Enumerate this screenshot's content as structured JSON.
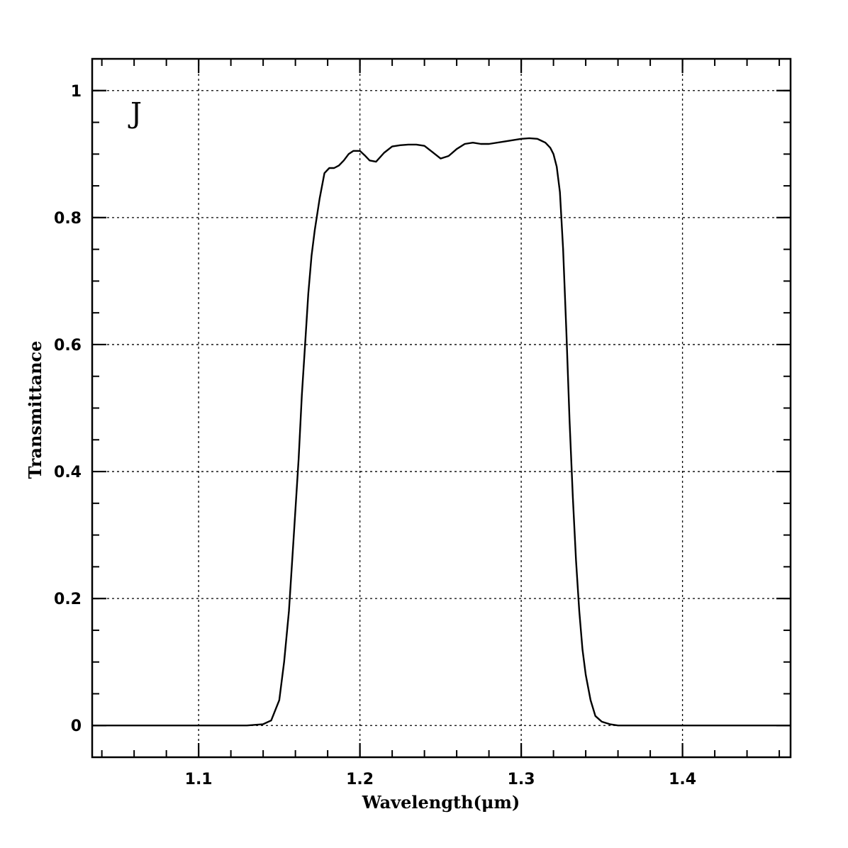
{
  "chart_data": {
    "type": "line",
    "xlabel": "Wavelength(μm)",
    "ylabel": "Transmittance",
    "annotation": "J",
    "xlim": [
      1.034,
      1.467
    ],
    "ylim": [
      -0.05,
      1.05
    ],
    "xticks": [
      1.1,
      1.2,
      1.3,
      1.4
    ],
    "xtick_labels": [
      "1.1",
      "1.2",
      "1.3",
      "1.4"
    ],
    "yticks": [
      0,
      0.2,
      0.4,
      0.6,
      0.8,
      1.0
    ],
    "ytick_labels": [
      "0",
      "0.2",
      "0.4",
      "0.6",
      "0.8",
      "1"
    ],
    "x_minor_step": 0.02,
    "y_minor_step": 0.05,
    "grid": true,
    "series": [
      {
        "x": [
          1.034,
          1.1,
          1.13,
          1.14,
          1.145,
          1.15,
          1.153,
          1.156,
          1.159,
          1.162,
          1.164,
          1.166,
          1.168,
          1.17,
          1.172,
          1.175,
          1.178,
          1.181,
          1.184,
          1.187,
          1.19,
          1.193,
          1.196,
          1.2,
          1.203,
          1.206,
          1.21,
          1.215,
          1.22,
          1.225,
          1.23,
          1.235,
          1.24,
          1.245,
          1.25,
          1.255,
          1.26,
          1.265,
          1.27,
          1.275,
          1.28,
          1.29,
          1.3,
          1.305,
          1.31,
          1.315,
          1.318,
          1.32,
          1.322,
          1.324,
          1.326,
          1.328,
          1.33,
          1.332,
          1.334,
          1.336,
          1.338,
          1.34,
          1.343,
          1.346,
          1.35,
          1.355,
          1.36,
          1.37,
          1.4,
          1.467
        ],
        "y": [
          0.0,
          0.0,
          0.0,
          0.002,
          0.008,
          0.04,
          0.1,
          0.18,
          0.3,
          0.42,
          0.52,
          0.6,
          0.68,
          0.74,
          0.78,
          0.83,
          0.87,
          0.878,
          0.878,
          0.882,
          0.89,
          0.9,
          0.905,
          0.905,
          0.898,
          0.89,
          0.888,
          0.902,
          0.912,
          0.914,
          0.915,
          0.915,
          0.913,
          0.903,
          0.893,
          0.897,
          0.908,
          0.916,
          0.918,
          0.916,
          0.916,
          0.92,
          0.924,
          0.925,
          0.924,
          0.918,
          0.91,
          0.9,
          0.88,
          0.84,
          0.75,
          0.62,
          0.48,
          0.36,
          0.26,
          0.18,
          0.12,
          0.08,
          0.04,
          0.015,
          0.006,
          0.002,
          0.0,
          0.0,
          0.0,
          0.0
        ]
      }
    ]
  }
}
